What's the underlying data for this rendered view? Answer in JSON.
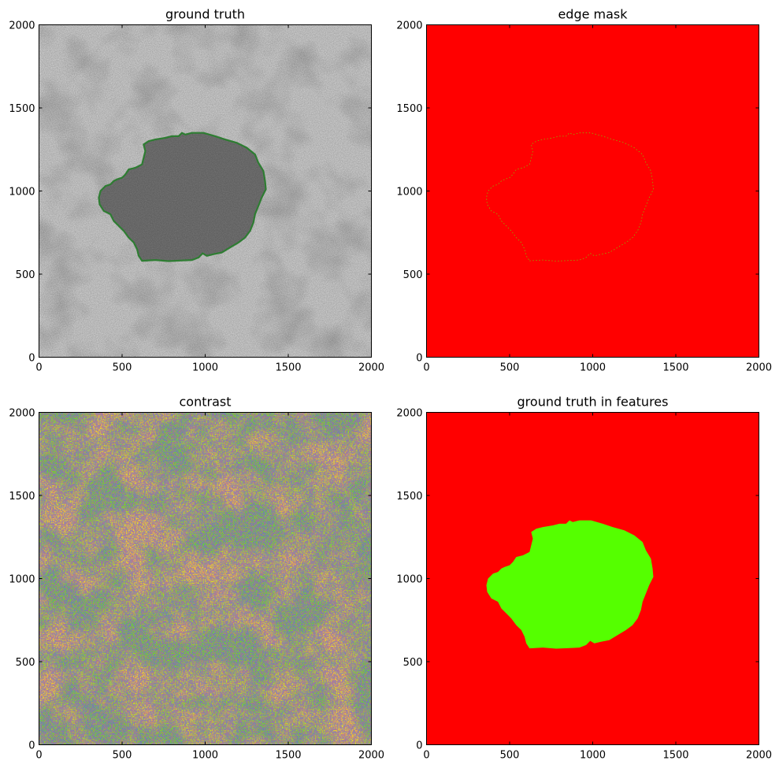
{
  "chart_data": [
    {
      "type": "heatmap",
      "title": "ground truth",
      "colormap": "gray",
      "overlay": "green-contour",
      "overlay_color": "#2e7d32",
      "xlim": [
        0,
        2000
      ],
      "ylim": [
        2000,
        0
      ],
      "xticks": [
        0,
        500,
        1000,
        1500,
        2000
      ],
      "yticks": [
        0,
        500,
        1000,
        1500,
        2000
      ]
    },
    {
      "type": "heatmap",
      "title": "edge mask",
      "colormap": "red-green",
      "background_color": "#ff0000",
      "overlay": "thin-green-edge",
      "overlay_color": "#55ff00",
      "xlim": [
        0,
        2000
      ],
      "ylim": [
        2000,
        0
      ],
      "xticks": [
        0,
        500,
        1000,
        1500,
        2000
      ],
      "yticks": [
        0,
        500,
        1000,
        1500,
        2000
      ]
    },
    {
      "type": "heatmap",
      "title": "contrast",
      "colormap": "multi-color",
      "palette": [
        "#ffff00",
        "#55ff00",
        "#00cc44",
        "#2233cc",
        "#ff0000",
        "#cc22cc"
      ],
      "xlim": [
        0,
        2000
      ],
      "ylim": [
        2000,
        0
      ],
      "xticks": [
        0,
        500,
        1000,
        1500,
        2000
      ],
      "yticks": [
        0,
        500,
        1000,
        1500,
        2000
      ]
    },
    {
      "type": "heatmap",
      "title": "ground truth in features",
      "colormap": "red-green",
      "background_color": "#ff0000",
      "overlay": "filled-region",
      "overlay_color": "#55ff00",
      "xlim": [
        0,
        2000
      ],
      "ylim": [
        2000,
        0
      ],
      "xticks": [
        0,
        500,
        1000,
        1500,
        2000
      ],
      "yticks": [
        0,
        500,
        1000,
        1500,
        2000
      ]
    }
  ]
}
